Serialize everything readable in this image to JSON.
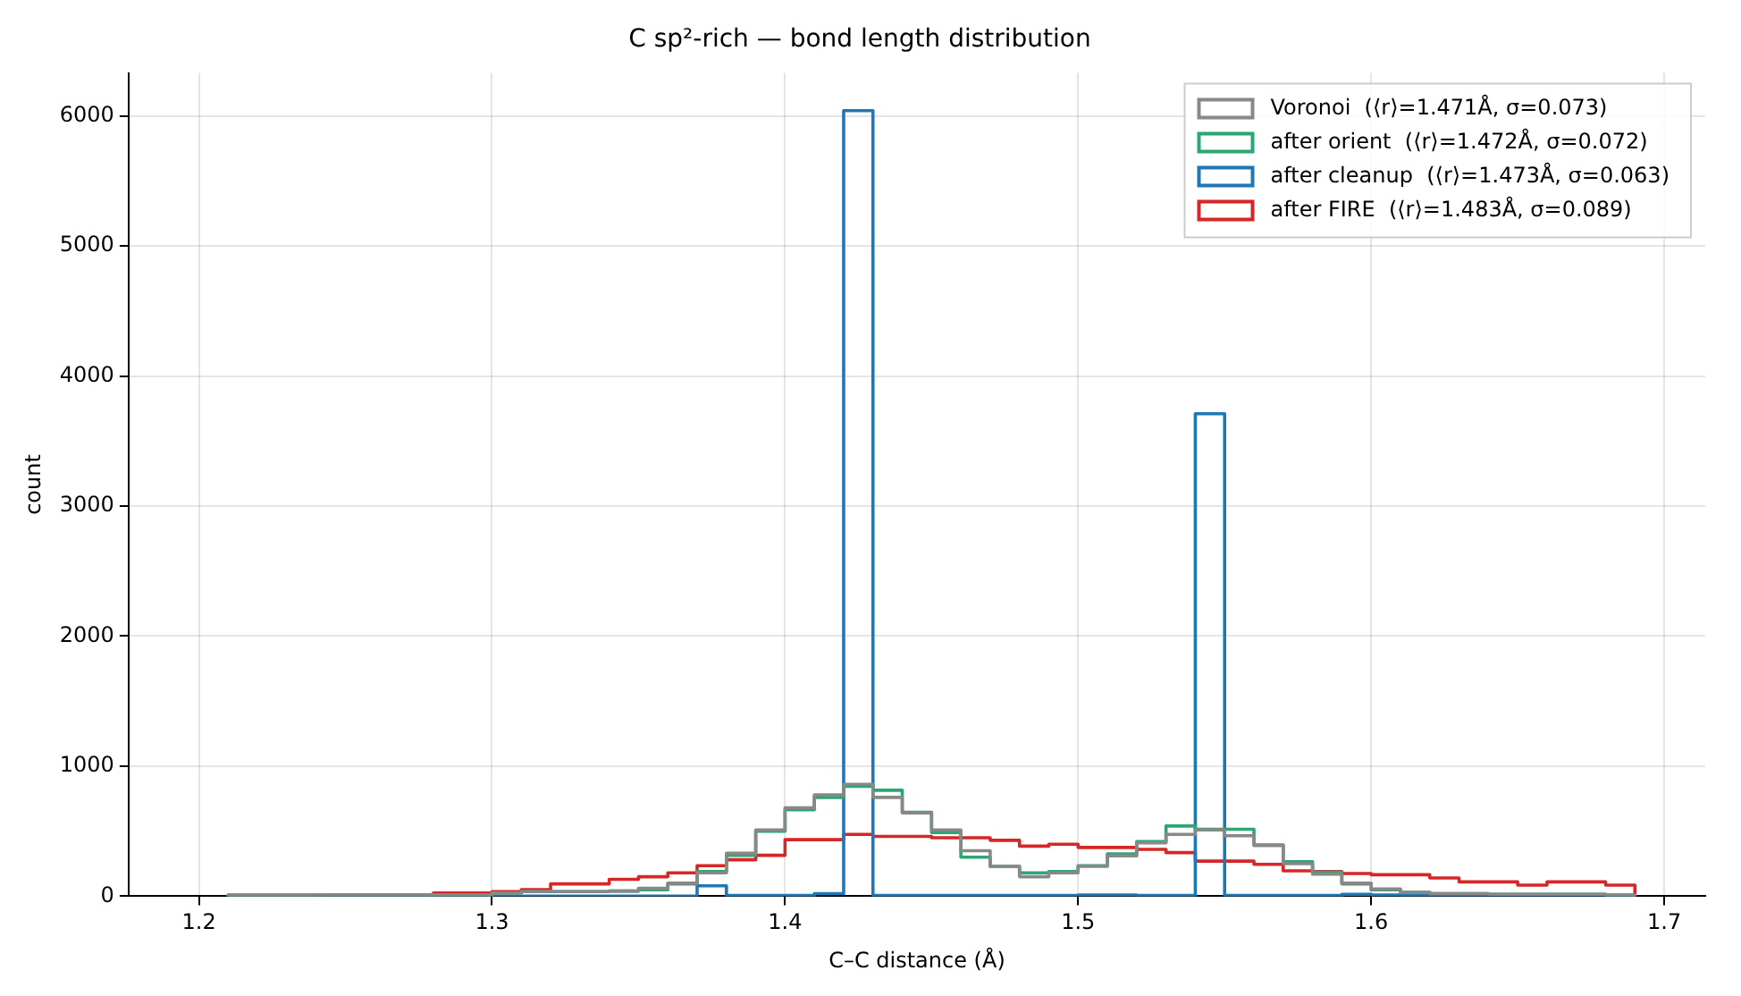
{
  "chart_data": {
    "type": "histogram",
    "title": "C sp²-rich — bond length distribution",
    "xlabel": "C–C distance (Å)",
    "ylabel": "count",
    "bins": [
      1.21,
      1.22,
      1.23,
      1.24,
      1.25,
      1.26,
      1.27,
      1.28,
      1.29,
      1.3,
      1.31,
      1.32,
      1.33,
      1.34,
      1.35,
      1.36,
      1.37,
      1.38,
      1.39,
      1.4,
      1.41,
      1.42,
      1.43,
      1.44,
      1.45,
      1.46,
      1.47,
      1.48,
      1.49,
      1.5,
      1.51,
      1.52,
      1.53,
      1.54,
      1.55,
      1.56,
      1.57,
      1.58,
      1.59,
      1.6,
      1.61,
      1.62,
      1.63,
      1.64,
      1.65,
      1.66,
      1.67,
      1.68,
      1.69
    ],
    "series": [
      {
        "name": "Voronoi  (⟨r⟩=1.471Å, σ=0.073)",
        "color": "#888888",
        "values": [
          10,
          10,
          10,
          10,
          10,
          10,
          10,
          10,
          10,
          25,
          35,
          35,
          35,
          40,
          60,
          100,
          180,
          330,
          510,
          680,
          780,
          860,
          760,
          640,
          510,
          350,
          230,
          150,
          180,
          230,
          310,
          410,
          475,
          510,
          465,
          390,
          250,
          170,
          100,
          55,
          30,
          20,
          20,
          15,
          15,
          15,
          15,
          10
        ]
      },
      {
        "name": "after orient  (⟨r⟩=1.472Å, σ=0.072)",
        "color": "#2ca673",
        "values": [
          10,
          10,
          10,
          10,
          10,
          10,
          10,
          10,
          10,
          25,
          35,
          35,
          35,
          40,
          50,
          95,
          190,
          315,
          500,
          665,
          760,
          845,
          815,
          645,
          490,
          300,
          230,
          180,
          190,
          235,
          325,
          420,
          540,
          515,
          515,
          395,
          265,
          185,
          95,
          50,
          30,
          20,
          20,
          15,
          15,
          15,
          15,
          10
        ]
      },
      {
        "name": "after cleanup  (⟨r⟩=1.473Å, σ=0.063)",
        "color": "#1f77b4",
        "values": [
          0,
          0,
          0,
          0,
          0,
          0,
          0,
          0,
          0,
          0,
          0,
          0,
          0,
          0,
          0,
          0,
          80,
          5,
          5,
          5,
          20,
          6040,
          5,
          5,
          5,
          5,
          5,
          5,
          5,
          10,
          10,
          5,
          5,
          3710,
          5,
          5,
          5,
          5,
          15,
          10,
          5,
          5,
          5,
          5,
          5,
          5,
          5,
          5
        ]
      },
      {
        "name": "after FIRE  (⟨r⟩=1.483Å, σ=0.089)",
        "color": "#d62728",
        "values": [
          5,
          5,
          5,
          10,
          10,
          10,
          10,
          25,
          25,
          35,
          50,
          95,
          95,
          130,
          150,
          180,
          235,
          280,
          315,
          435,
          435,
          475,
          460,
          460,
          450,
          450,
          430,
          385,
          400,
          375,
          375,
          360,
          335,
          270,
          270,
          245,
          195,
          190,
          175,
          165,
          165,
          140,
          110,
          110,
          85,
          110,
          110,
          85
        ]
      }
    ],
    "xlim": [
      1.176,
      1.714
    ],
    "ylim": [
      0,
      6330
    ],
    "xticks": [
      1.2,
      1.3,
      1.4,
      1.5,
      1.6,
      1.7
    ],
    "yticks": [
      0,
      1000,
      2000,
      3000,
      4000,
      5000,
      6000
    ],
    "grid": true,
    "legend": "top right"
  }
}
